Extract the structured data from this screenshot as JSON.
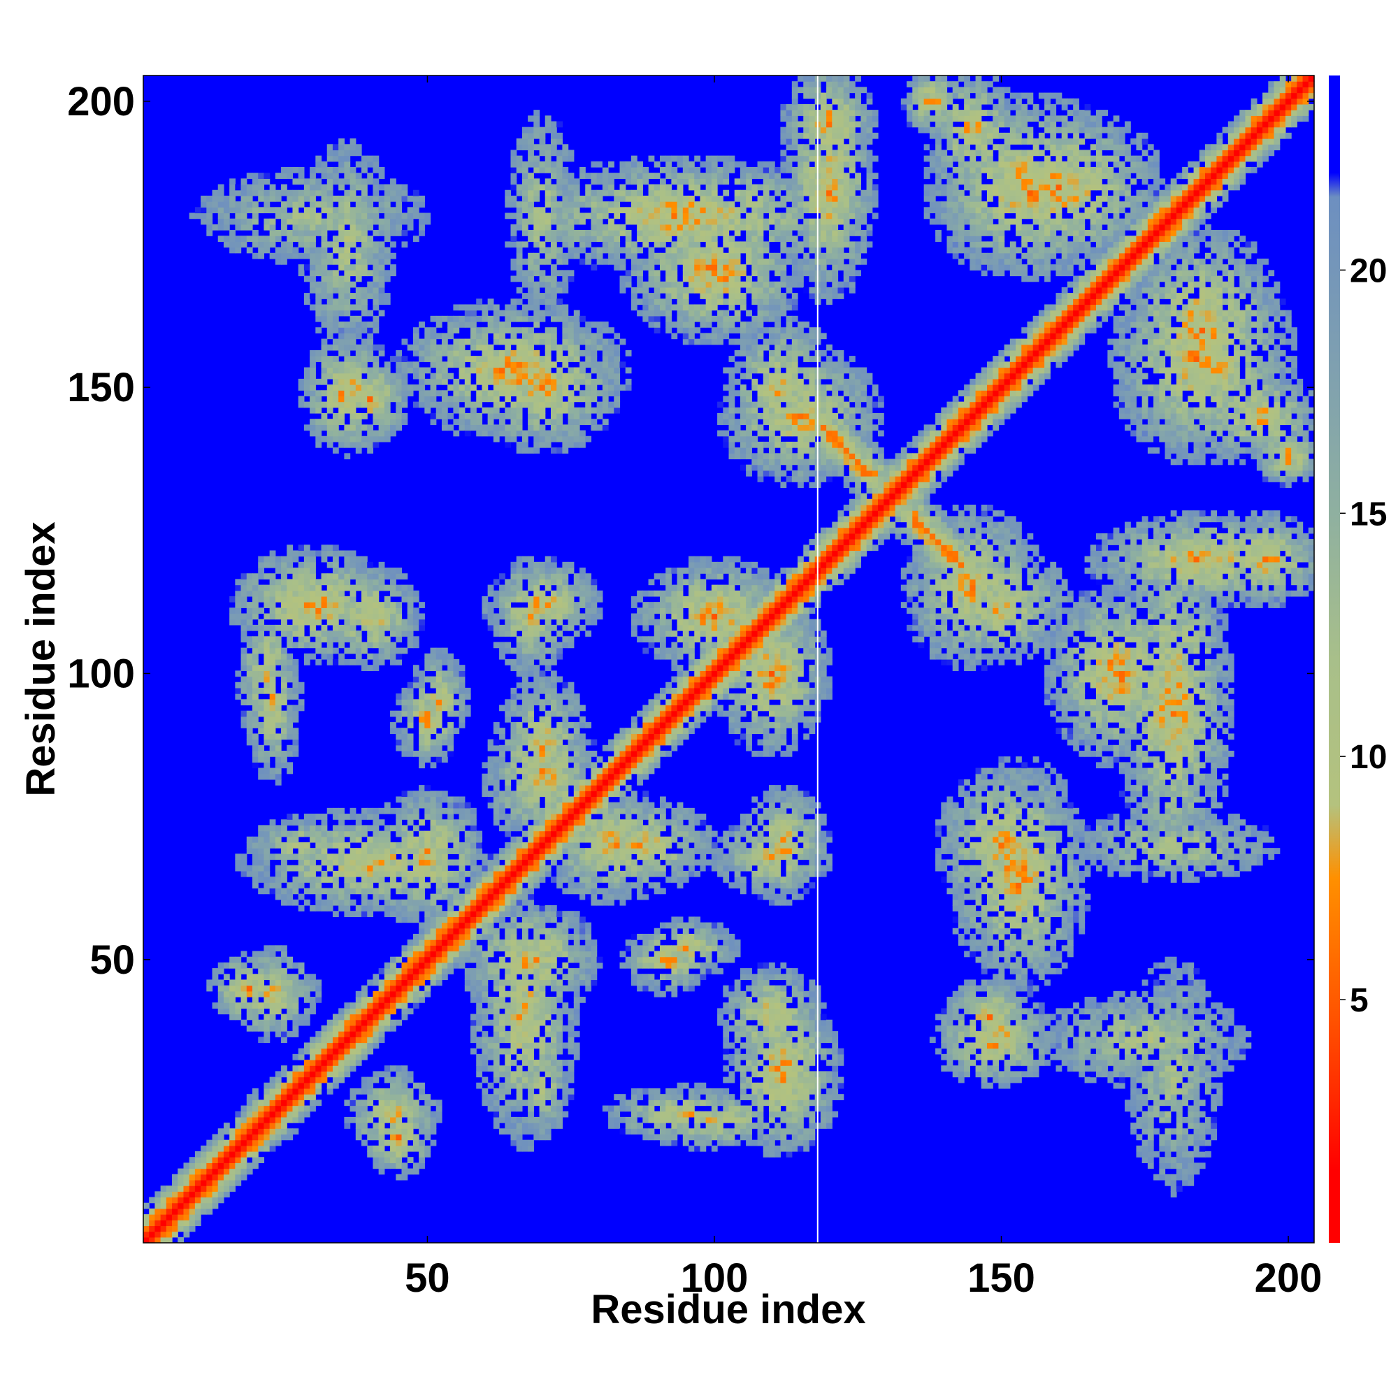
{
  "chart_data": {
    "type": "heatmap",
    "title": "",
    "xlabel": "Residue index",
    "ylabel": "Residue index",
    "n_residues": 204,
    "xlim": [
      1,
      204
    ],
    "ylim": [
      1,
      204
    ],
    "x_ticks": [
      50,
      100,
      150,
      200
    ],
    "y_ticks": [
      50,
      100,
      150,
      200
    ],
    "x_tick_labels": [
      "50",
      "100",
      "150",
      "200"
    ],
    "y_tick_labels": [
      "50",
      "100",
      "150",
      "200"
    ],
    "marked_column": 118,
    "colorbar": {
      "range": [
        0,
        24
      ],
      "ticks": [
        5,
        10,
        15,
        20
      ],
      "tick_labels": [
        "5",
        "10",
        "15",
        "20"
      ],
      "stops": [
        {
          "value": 0,
          "color": "#ff0000"
        },
        {
          "value": 1.5,
          "color": "#ff0000"
        },
        {
          "value": 3,
          "color": "#ff2a00"
        },
        {
          "value": 4.5,
          "color": "#ff5000"
        },
        {
          "value": 6,
          "color": "#ff7000"
        },
        {
          "value": 7.5,
          "color": "#ff9000"
        },
        {
          "value": 9,
          "color": "#b4c27e"
        },
        {
          "value": 12,
          "color": "#a8bf8a"
        },
        {
          "value": 15,
          "color": "#8fb0a0"
        },
        {
          "value": 18,
          "color": "#7fa0b0"
        },
        {
          "value": 21.5,
          "color": "#6d8fc0"
        },
        {
          "value": 22,
          "color": "#0000ff"
        },
        {
          "value": 24,
          "color": "#0000ff"
        }
      ]
    },
    "cutoff_value": 22,
    "background_color": "#0000ff",
    "diagonal": {
      "core": 0.6,
      "near": 4.0,
      "band_half_width": 5
    },
    "contact_blobs": [
      {
        "x": 23,
        "y": 23,
        "rx": 5,
        "ry": 5,
        "core": 7
      },
      {
        "x": 44,
        "y": 23,
        "rx": 8,
        "ry": 8,
        "core": 8
      },
      {
        "x": 19,
        "y": 45,
        "rx": 6,
        "ry": 6,
        "core": 7
      },
      {
        "x": 45,
        "y": 18,
        "rx": 6,
        "ry": 6,
        "core": 7
      },
      {
        "x": 70,
        "y": 28,
        "rx": 5,
        "ry": 9,
        "core": 10
      },
      {
        "x": 95,
        "y": 23,
        "rx": 14,
        "ry": 5,
        "core": 9
      },
      {
        "x": 110,
        "y": 40,
        "rx": 9,
        "ry": 9,
        "core": 8
      },
      {
        "x": 95,
        "y": 52,
        "rx": 9,
        "ry": 5,
        "core": 8
      },
      {
        "x": 68,
        "y": 50,
        "rx": 12,
        "ry": 10,
        "core": 8
      },
      {
        "x": 40,
        "y": 67,
        "rx": 22,
        "ry": 9,
        "core": 8
      },
      {
        "x": 110,
        "y": 68,
        "rx": 10,
        "ry": 7,
        "core": 9
      },
      {
        "x": 88,
        "y": 70,
        "rx": 12,
        "ry": 8,
        "core": 8
      },
      {
        "x": 70,
        "y": 82,
        "rx": 10,
        "ry": 12,
        "core": 8
      },
      {
        "x": 22,
        "y": 100,
        "rx": 5,
        "ry": 14,
        "core": 9
      },
      {
        "x": 50,
        "y": 92,
        "rx": 6,
        "ry": 8,
        "core": 8
      },
      {
        "x": 30,
        "y": 112,
        "rx": 14,
        "ry": 10,
        "core": 7
      },
      {
        "x": 70,
        "y": 112,
        "rx": 10,
        "ry": 8,
        "core": 8
      },
      {
        "x": 100,
        "y": 110,
        "rx": 14,
        "ry": 10,
        "core": 7
      },
      {
        "x": 36,
        "y": 149,
        "rx": 8,
        "ry": 11,
        "core": 7
      },
      {
        "x": 65,
        "y": 153,
        "rx": 20,
        "ry": 12,
        "core": 7
      },
      {
        "x": 115,
        "y": 145,
        "rx": 14,
        "ry": 12,
        "core": 8
      },
      {
        "x": 30,
        "y": 180,
        "rx": 20,
        "ry": 8,
        "core": 12
      },
      {
        "x": 95,
        "y": 180,
        "rx": 30,
        "ry": 10,
        "core": 7
      },
      {
        "x": 120,
        "y": 196,
        "rx": 8,
        "ry": 10,
        "core": 7
      },
      {
        "x": 148,
        "y": 40,
        "rx": 8,
        "ry": 7,
        "core": 8
      },
      {
        "x": 175,
        "y": 36,
        "rx": 18,
        "ry": 8,
        "core": 11
      },
      {
        "x": 150,
        "y": 70,
        "rx": 11,
        "ry": 14,
        "core": 8
      },
      {
        "x": 180,
        "y": 70,
        "rx": 18,
        "ry": 6,
        "core": 11
      },
      {
        "x": 170,
        "y": 100,
        "rx": 12,
        "ry": 16,
        "core": 7
      },
      {
        "x": 150,
        "y": 112,
        "rx": 12,
        "ry": 10,
        "core": 8
      },
      {
        "x": 185,
        "y": 120,
        "rx": 20,
        "ry": 8,
        "core": 7
      },
      {
        "x": 145,
        "y": 195,
        "rx": 8,
        "ry": 10,
        "core": 8
      },
      {
        "x": 185,
        "y": 155,
        "rx": 16,
        "ry": 18,
        "core": 7
      },
      {
        "x": 160,
        "y": 185,
        "rx": 18,
        "ry": 14,
        "core": 7
      },
      {
        "x": 200,
        "y": 138,
        "rx": 6,
        "ry": 5,
        "core": 7
      }
    ],
    "antiparallel_strands": [
      {
        "x0": 119,
        "y0": 143,
        "x1": 127,
        "y1": 135,
        "half_width": 4,
        "core": 6
      },
      {
        "x0": 135,
        "y0": 127,
        "x1": 143,
        "y1": 119,
        "half_width": 4,
        "core": 6
      }
    ]
  }
}
